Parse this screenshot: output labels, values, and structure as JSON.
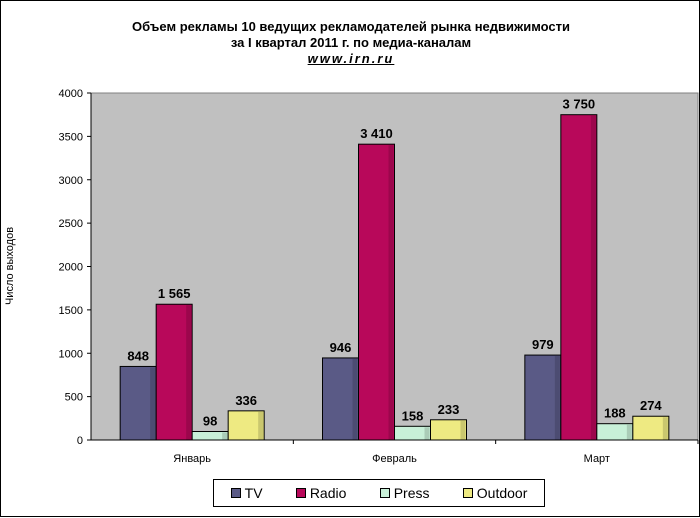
{
  "chart_data": {
    "type": "bar",
    "title": "Объем рекламы 10 ведущих рекламодателей рынка недвижимости",
    "subtitle": "за I квартал 2011 г. по медиа-каналам",
    "source": "www.irn.ru",
    "ylabel": "Число выходов",
    "xlabel": "",
    "ylim": [
      0,
      4000
    ],
    "yticks": [
      0,
      500,
      1000,
      1500,
      2000,
      2500,
      3000,
      3500,
      4000
    ],
    "categories": [
      "Январь",
      "Февраль",
      "Март"
    ],
    "series": [
      {
        "name": "TV",
        "color": "#5a5a86",
        "values": [
          848,
          946,
          979
        ],
        "labels": [
          "848",
          "946",
          "979"
        ]
      },
      {
        "name": "Radio",
        "color": "#b8085a",
        "values": [
          1565,
          3410,
          3750
        ],
        "labels": [
          "1 565",
          "3 410",
          "3 750"
        ]
      },
      {
        "name": "Press",
        "color": "#c8f0d8",
        "values": [
          98,
          158,
          188
        ],
        "labels": [
          "98",
          "158",
          "188"
        ]
      },
      {
        "name": "Outdoor",
        "color": "#eeea82",
        "values": [
          336,
          233,
          274
        ],
        "labels": [
          "336",
          "233",
          "274"
        ]
      }
    ],
    "plot_background": "#c0c0c0",
    "grid": false,
    "legend_position": "bottom"
  }
}
